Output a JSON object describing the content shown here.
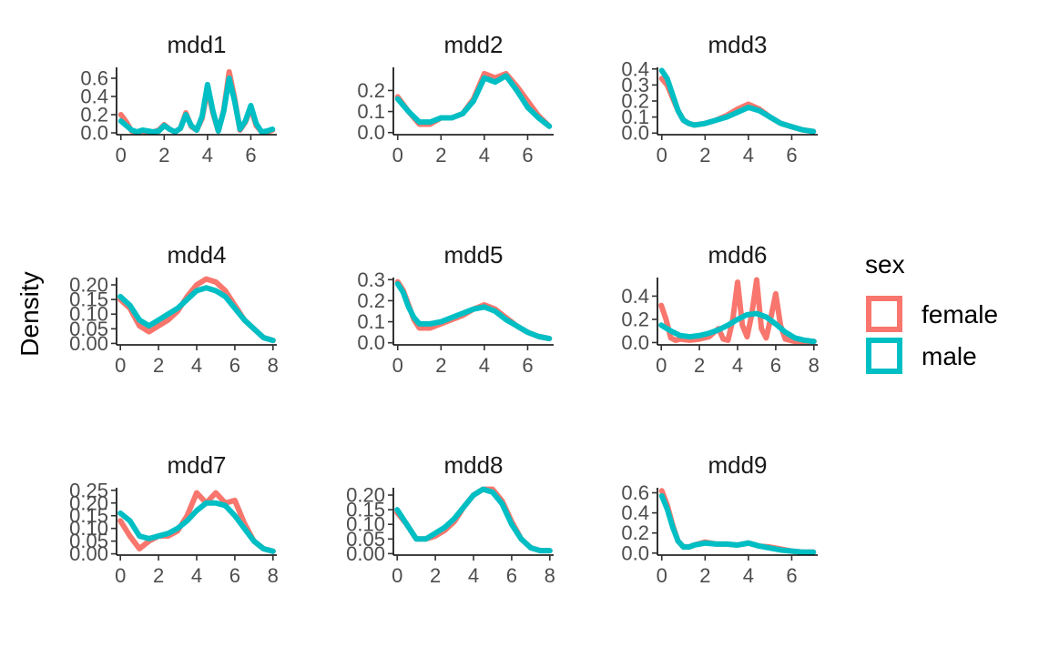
{
  "chart_data": {
    "type": "line",
    "ylabel": "Density",
    "legend": {
      "title": "sex",
      "position": "right",
      "entries": [
        {
          "label": "female",
          "color": "#F8766D"
        },
        {
          "label": "male",
          "color": "#00BFC4"
        }
      ]
    },
    "grid": false,
    "panels": [
      {
        "title": "mdd1",
        "xlim": [
          -0.2,
          7.2
        ],
        "ylim": [
          -0.02,
          0.72
        ],
        "xticks": [
          0,
          2,
          4,
          6
        ],
        "yticks": [
          0.0,
          0.2,
          0.4,
          0.6
        ],
        "ytick_labels": [
          "0.0",
          "0.2",
          "0.4",
          "0.6"
        ],
        "series": [
          {
            "name": "female",
            "x": [
              0,
              0.25,
              0.5,
              0.75,
              1,
              1.25,
              1.5,
              1.75,
              2,
              2.25,
              2.5,
              2.75,
              3,
              3.25,
              3.5,
              3.75,
              4,
              4.25,
              4.5,
              4.75,
              5,
              5.25,
              5.5,
              5.75,
              6,
              6.25,
              6.5,
              6.75,
              7
            ],
            "y": [
              0.2,
              0.12,
              0.02,
              0.01,
              0.02,
              0.01,
              0.01,
              0.03,
              0.09,
              0.04,
              0.01,
              0.05,
              0.22,
              0.07,
              0.03,
              0.16,
              0.48,
              0.22,
              0.02,
              0.25,
              0.67,
              0.38,
              0.03,
              0.12,
              0.27,
              0.08,
              0.01,
              0.01,
              0.03
            ]
          },
          {
            "name": "male",
            "x": [
              0,
              0.25,
              0.5,
              0.75,
              1,
              1.25,
              1.5,
              1.75,
              2,
              2.25,
              2.5,
              2.75,
              3,
              3.25,
              3.5,
              3.75,
              4,
              4.25,
              4.5,
              4.75,
              5,
              5.25,
              5.5,
              5.75,
              6,
              6.25,
              6.5,
              6.75,
              7
            ],
            "y": [
              0.13,
              0.08,
              0.03,
              0.01,
              0.03,
              0.02,
              0.01,
              0.02,
              0.08,
              0.04,
              0.01,
              0.05,
              0.2,
              0.08,
              0.03,
              0.18,
              0.53,
              0.24,
              0.02,
              0.24,
              0.6,
              0.35,
              0.04,
              0.13,
              0.3,
              0.1,
              0.01,
              0.02,
              0.04
            ]
          }
        ]
      },
      {
        "title": "mdd2",
        "xlim": [
          -0.2,
          7.2
        ],
        "ylim": [
          -0.01,
          0.31
        ],
        "xticks": [
          0,
          2,
          4,
          6
        ],
        "yticks": [
          0.0,
          0.1,
          0.2
        ],
        "ytick_labels": [
          "0.0",
          "0.1",
          "0.2"
        ],
        "series": [
          {
            "name": "female",
            "x": [
              0,
              0.5,
              1,
              1.5,
              2,
              2.5,
              3,
              3.5,
              4,
              4.5,
              5,
              5.5,
              6,
              6.5,
              7
            ],
            "y": [
              0.17,
              0.1,
              0.04,
              0.04,
              0.07,
              0.07,
              0.09,
              0.16,
              0.28,
              0.26,
              0.28,
              0.22,
              0.15,
              0.08,
              0.03
            ]
          },
          {
            "name": "male",
            "x": [
              0,
              0.5,
              1,
              1.5,
              2,
              2.5,
              3,
              3.5,
              4,
              4.5,
              5,
              5.5,
              6,
              6.5,
              7
            ],
            "y": [
              0.16,
              0.1,
              0.05,
              0.05,
              0.07,
              0.07,
              0.09,
              0.15,
              0.26,
              0.24,
              0.27,
              0.2,
              0.12,
              0.07,
              0.03
            ]
          }
        ]
      },
      {
        "title": "mdd3",
        "xlim": [
          -0.2,
          7.2
        ],
        "ylim": [
          -0.01,
          0.41
        ],
        "xticks": [
          0,
          2,
          4,
          6
        ],
        "yticks": [
          0.0,
          0.1,
          0.2,
          0.3,
          0.4
        ],
        "ytick_labels": [
          "0.0",
          "0.1",
          "0.2",
          "0.3",
          "0.4"
        ],
        "series": [
          {
            "name": "female",
            "x": [
              0,
              0.25,
              0.5,
              0.75,
              1,
              1.25,
              1.5,
              2,
              2.5,
              3,
              3.5,
              4,
              4.5,
              5,
              5.5,
              6,
              6.5,
              7
            ],
            "y": [
              0.34,
              0.3,
              0.22,
              0.14,
              0.08,
              0.06,
              0.05,
              0.06,
              0.08,
              0.11,
              0.15,
              0.18,
              0.15,
              0.1,
              0.06,
              0.04,
              0.02,
              0.01
            ]
          },
          {
            "name": "male",
            "x": [
              0,
              0.25,
              0.5,
              0.75,
              1,
              1.25,
              1.5,
              2,
              2.5,
              3,
              3.5,
              4,
              4.5,
              5,
              5.5,
              6,
              6.5,
              7
            ],
            "y": [
              0.39,
              0.34,
              0.24,
              0.14,
              0.08,
              0.06,
              0.05,
              0.06,
              0.08,
              0.1,
              0.13,
              0.16,
              0.14,
              0.1,
              0.06,
              0.04,
              0.02,
              0.01
            ]
          }
        ]
      },
      {
        "title": "mdd4",
        "xlim": [
          -0.2,
          8.2
        ],
        "ylim": [
          -0.005,
          0.225
        ],
        "xticks": [
          0,
          2,
          4,
          6,
          8
        ],
        "yticks": [
          0.0,
          0.05,
          0.1,
          0.15,
          0.2
        ],
        "ytick_labels": [
          "0.00",
          "0.05",
          "0.10",
          "0.15",
          "0.20"
        ],
        "series": [
          {
            "name": "female",
            "x": [
              0,
              0.5,
              1,
              1.5,
              2,
              2.5,
              3,
              3.5,
              4,
              4.5,
              5,
              5.5,
              6,
              6.5,
              7,
              7.5,
              8
            ],
            "y": [
              0.15,
              0.12,
              0.06,
              0.04,
              0.06,
              0.08,
              0.11,
              0.16,
              0.2,
              0.22,
              0.21,
              0.18,
              0.13,
              0.08,
              0.05,
              0.02,
              0.01
            ]
          },
          {
            "name": "male",
            "x": [
              0,
              0.5,
              1,
              1.5,
              2,
              2.5,
              3,
              3.5,
              4,
              4.5,
              5,
              5.5,
              6,
              6.5,
              7,
              7.5,
              8
            ],
            "y": [
              0.16,
              0.13,
              0.08,
              0.06,
              0.08,
              0.1,
              0.12,
              0.15,
              0.18,
              0.19,
              0.18,
              0.16,
              0.12,
              0.08,
              0.05,
              0.02,
              0.01
            ]
          }
        ]
      },
      {
        "title": "mdd5",
        "xlim": [
          -0.2,
          7.2
        ],
        "ylim": [
          -0.01,
          0.31
        ],
        "xticks": [
          0,
          2,
          4,
          6
        ],
        "yticks": [
          0.0,
          0.1,
          0.2,
          0.3
        ],
        "ytick_labels": [
          "0.0",
          "0.1",
          "0.2",
          "0.3"
        ],
        "series": [
          {
            "name": "female",
            "x": [
              0,
              0.25,
              0.5,
              0.75,
              1,
              1.5,
              2,
              2.5,
              3,
              3.5,
              4,
              4.5,
              5,
              5.5,
              6,
              6.5,
              7
            ],
            "y": [
              0.29,
              0.25,
              0.18,
              0.11,
              0.07,
              0.07,
              0.09,
              0.11,
              0.13,
              0.16,
              0.18,
              0.16,
              0.12,
              0.08,
              0.05,
              0.03,
              0.02
            ]
          },
          {
            "name": "male",
            "x": [
              0,
              0.25,
              0.5,
              0.75,
              1,
              1.5,
              2,
              2.5,
              3,
              3.5,
              4,
              4.5,
              5,
              5.5,
              6,
              6.5,
              7
            ],
            "y": [
              0.28,
              0.24,
              0.17,
              0.12,
              0.09,
              0.09,
              0.1,
              0.12,
              0.14,
              0.16,
              0.17,
              0.15,
              0.11,
              0.08,
              0.05,
              0.03,
              0.02
            ]
          }
        ]
      },
      {
        "title": "mdd6",
        "xlim": [
          -0.2,
          8.2
        ],
        "ylim": [
          -0.02,
          0.56
        ],
        "xticks": [
          0,
          2,
          4,
          6,
          8
        ],
        "yticks": [
          0.0,
          0.2,
          0.4
        ],
        "ytick_labels": [
          "0.0",
          "0.2",
          "0.4"
        ],
        "series": [
          {
            "name": "female",
            "x": [
              0,
              0.25,
              0.5,
              0.75,
              1,
              1.5,
              2,
              2.5,
              3,
              3.25,
              3.5,
              3.75,
              4,
              4.25,
              4.5,
              4.75,
              5,
              5.25,
              5.5,
              5.75,
              6,
              6.25,
              6.5,
              7,
              7.5,
              8
            ],
            "y": [
              0.32,
              0.2,
              0.04,
              0.02,
              0.03,
              0.02,
              0.03,
              0.05,
              0.12,
              0.03,
              0.02,
              0.2,
              0.52,
              0.15,
              0.05,
              0.25,
              0.54,
              0.12,
              0.04,
              0.22,
              0.42,
              0.15,
              0.03,
              0.01,
              0.01,
              0.01
            ]
          },
          {
            "name": "male",
            "x": [
              0,
              0.5,
              1,
              1.5,
              2,
              2.5,
              3,
              3.5,
              4,
              4.5,
              5,
              5.5,
              6,
              6.5,
              7,
              7.5,
              8
            ],
            "y": [
              0.15,
              0.1,
              0.06,
              0.05,
              0.06,
              0.08,
              0.11,
              0.15,
              0.2,
              0.24,
              0.25,
              0.22,
              0.16,
              0.09,
              0.04,
              0.02,
              0.01
            ]
          }
        ]
      },
      {
        "title": "mdd7",
        "xlim": [
          -0.2,
          8.2
        ],
        "ylim": [
          -0.005,
          0.26
        ],
        "xticks": [
          0,
          2,
          4,
          6,
          8
        ],
        "yticks": [
          0.0,
          0.05,
          0.1,
          0.15,
          0.2,
          0.25
        ],
        "ytick_labels": [
          "0.00",
          "0.05",
          "0.10",
          "0.15",
          "0.20",
          "0.25"
        ],
        "series": [
          {
            "name": "female",
            "x": [
              0,
              0.5,
              1,
              1.5,
              2,
              2.5,
              3,
              3.5,
              4,
              4.5,
              5,
              5.5,
              6,
              6.5,
              7,
              7.5,
              8
            ],
            "y": [
              0.13,
              0.07,
              0.02,
              0.05,
              0.07,
              0.07,
              0.09,
              0.15,
              0.24,
              0.2,
              0.24,
              0.2,
              0.21,
              0.12,
              0.05,
              0.02,
              0.01
            ]
          },
          {
            "name": "male",
            "x": [
              0,
              0.5,
              1,
              1.5,
              2,
              2.5,
              3,
              3.5,
              4,
              4.5,
              5,
              5.5,
              6,
              6.5,
              7,
              7.5,
              8
            ],
            "y": [
              0.16,
              0.13,
              0.07,
              0.06,
              0.07,
              0.08,
              0.1,
              0.13,
              0.17,
              0.2,
              0.2,
              0.19,
              0.15,
              0.1,
              0.05,
              0.02,
              0.01
            ]
          }
        ]
      },
      {
        "title": "mdd8",
        "xlim": [
          -0.2,
          8.2
        ],
        "ylim": [
          -0.005,
          0.225
        ],
        "xticks": [
          0,
          2,
          4,
          6,
          8
        ],
        "yticks": [
          0.0,
          0.05,
          0.1,
          0.15,
          0.2
        ],
        "ytick_labels": [
          "0.00",
          "0.05",
          "0.10",
          "0.15",
          "0.20"
        ],
        "series": [
          {
            "name": "female",
            "x": [
              0,
              0.5,
              1,
              1.5,
              2,
              2.5,
              3,
              3.5,
              4,
              4.5,
              5,
              5.5,
              6,
              6.5,
              7,
              7.5,
              8
            ],
            "y": [
              0.14,
              0.1,
              0.05,
              0.05,
              0.06,
              0.08,
              0.11,
              0.16,
              0.2,
              0.22,
              0.22,
              0.18,
              0.11,
              0.05,
              0.02,
              0.01,
              0.01
            ]
          },
          {
            "name": "male",
            "x": [
              0,
              0.5,
              1,
              1.5,
              2,
              2.5,
              3,
              3.5,
              4,
              4.5,
              5,
              5.5,
              6,
              6.5,
              7,
              7.5,
              8
            ],
            "y": [
              0.15,
              0.1,
              0.05,
              0.05,
              0.07,
              0.09,
              0.12,
              0.16,
              0.2,
              0.22,
              0.21,
              0.17,
              0.1,
              0.05,
              0.02,
              0.01,
              0.01
            ]
          }
        ]
      },
      {
        "title": "mdd9",
        "xlim": [
          -0.2,
          7.2
        ],
        "ylim": [
          -0.02,
          0.65
        ],
        "xticks": [
          0,
          2,
          4,
          6
        ],
        "yticks": [
          0.0,
          0.2,
          0.4,
          0.6
        ],
        "ytick_labels": [
          "0.0",
          "0.2",
          "0.4",
          "0.6"
        ],
        "series": [
          {
            "name": "female",
            "x": [
              0,
              0.25,
              0.5,
              0.75,
              1,
              1.25,
              1.5,
              2,
              2.5,
              3,
              3.5,
              4,
              4.5,
              5,
              5.5,
              6,
              6.5,
              7
            ],
            "y": [
              0.62,
              0.48,
              0.28,
              0.12,
              0.06,
              0.06,
              0.08,
              0.11,
              0.09,
              0.09,
              0.08,
              0.1,
              0.07,
              0.06,
              0.04,
              0.02,
              0.01,
              0.01
            ]
          },
          {
            "name": "male",
            "x": [
              0,
              0.25,
              0.5,
              0.75,
              1,
              1.25,
              1.5,
              2,
              2.5,
              3,
              3.5,
              4,
              4.5,
              5,
              5.5,
              6,
              6.5,
              7
            ],
            "y": [
              0.57,
              0.44,
              0.26,
              0.12,
              0.06,
              0.06,
              0.08,
              0.1,
              0.09,
              0.09,
              0.08,
              0.1,
              0.07,
              0.05,
              0.03,
              0.02,
              0.01,
              0.01
            ]
          }
        ]
      }
    ]
  }
}
